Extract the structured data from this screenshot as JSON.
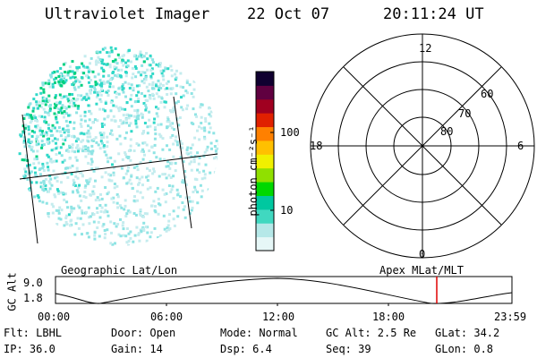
{
  "header": {
    "instrument": "Ultraviolet Imager",
    "date": "22 Oct 07",
    "time": "20:11:24 UT"
  },
  "colorbar": {
    "unit_label": "photon cm⁻²s⁻¹",
    "ticks": [
      "100",
      "10"
    ],
    "colors": [
      "#e6f7f7",
      "#b5e8e8",
      "#40d8c0",
      "#00c8a0",
      "#00d800",
      "#90e000",
      "#f0f000",
      "#ffc000",
      "#ff8000",
      "#e02000",
      "#a00020",
      "#600040",
      "#100030"
    ]
  },
  "polar_plot": {
    "top_label": "12",
    "bottom_label": "0",
    "left_label": "18",
    "right_label": "6",
    "ring_labels": [
      "60",
      "70",
      "80"
    ]
  },
  "orbit_panel": {
    "left_title": "Geographic Lat/Lon",
    "right_title": "Apex MLat/MLT",
    "axis_label": "GC Alt",
    "y_max": "9.0",
    "y_min": "1.8",
    "x_ticks": [
      "00:00",
      "06:00",
      "12:00",
      "18:00",
      "23:59"
    ],
    "marker_color": "#e00000"
  },
  "status": {
    "row1": {
      "filter": "Flt: LBHL",
      "door": "Door: Open",
      "mode": "Mode: Normal",
      "gc_alt": "GC Alt: 2.5 Re",
      "glat": "GLat:  34.2"
    },
    "row2": {
      "ip": "IP: 36.0",
      "gain": "Gain: 14",
      "dsp": "Dsp:    6.4",
      "seq": "Seq: 39",
      "glon": "GLon:   0.8"
    }
  }
}
